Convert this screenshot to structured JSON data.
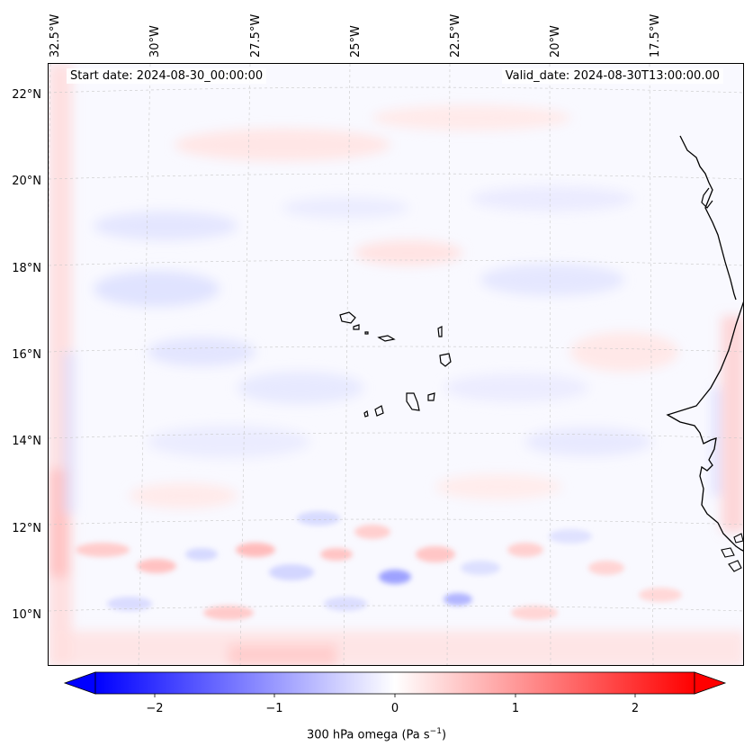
{
  "map": {
    "start_date": "Start date: 2024-08-30_00:00:00",
    "valid_date": "Valid_date: 2024-08-30T13:00:00.00",
    "lon_labels": [
      "32.5°W",
      "30°W",
      "27.5°W",
      "25°W",
      "22.5°W",
      "20°W",
      "17.5°W"
    ],
    "lat_labels": [
      "22°N",
      "20°N",
      "18°N",
      "16°N",
      "14°N",
      "12°N",
      "10°N"
    ],
    "colors": {
      "coastline": "#000000",
      "gridline": "#c8c8c8",
      "positive": "#ff0000",
      "negative": "#0000ff",
      "neutral": "#ffffff"
    }
  },
  "colorbar": {
    "ticks": [
      "−2",
      "−1",
      "0",
      "1",
      "2"
    ],
    "tick_values": [
      -2,
      -1,
      0,
      1,
      2
    ],
    "range": [
      -2.6,
      2.6
    ],
    "extend": "both",
    "label_main": "300 hPa omega (Pa s",
    "label_sup": "−1",
    "label_end": ")"
  }
}
